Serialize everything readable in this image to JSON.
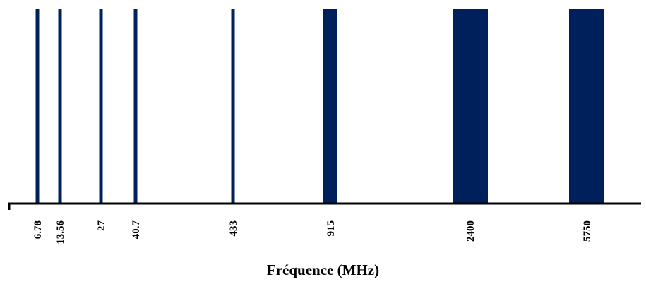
{
  "chart_data": {
    "type": "bar",
    "title": "",
    "xlabel": "Fréquence (MHz)",
    "ylabel": "",
    "categories": [
      "6.78",
      "13.56",
      "27",
      "40.7",
      "433",
      "915",
      "2400",
      "5750"
    ],
    "values": [
      1,
      1,
      1,
      1,
      1,
      1,
      1,
      1
    ],
    "relative_band_width": [
      1,
      1,
      1,
      1,
      1,
      4,
      10,
      10
    ],
    "grid": false,
    "legend": "none",
    "colors": {
      "bar": "#00205b",
      "axis": "#000000"
    }
  }
}
